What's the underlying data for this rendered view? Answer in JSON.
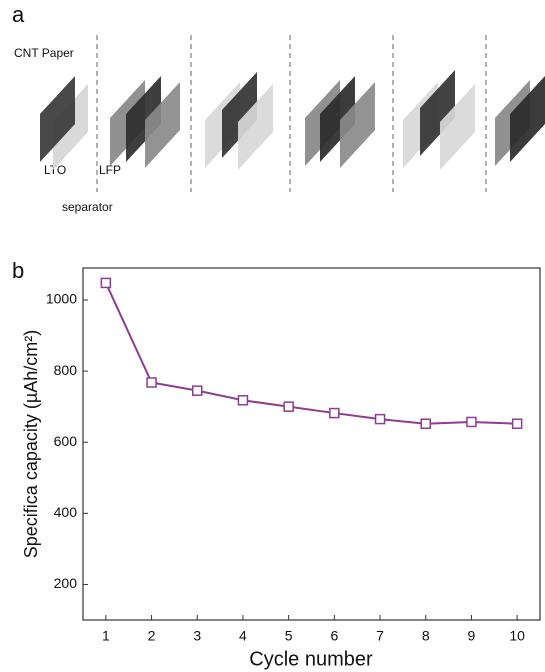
{
  "panel_a": {
    "label": "a",
    "cnt_paper": "CNT Paper",
    "lto": "LTO",
    "lfp": "LFP",
    "separator": "separator"
  },
  "chart_data": {
    "type": "line",
    "panel_label": "b",
    "x_label": "Cycle number",
    "y_label": "Specifica capacity (µAh/cm²)",
    "x": [
      1,
      2,
      3,
      4,
      5,
      6,
      7,
      8,
      9,
      10
    ],
    "series": [
      {
        "color": "#8e3d8e",
        "values": [
          1048,
          768,
          745,
          718,
          700,
          682,
          665,
          652,
          657,
          652
        ]
      }
    ],
    "xlim": [
      0.5,
      10.5
    ],
    "xticks": [
      1,
      2,
      3,
      4,
      5,
      6,
      7,
      8,
      9,
      10
    ],
    "ylim": [
      100,
      1090
    ],
    "yticks": [
      200,
      400,
      600,
      800,
      1000
    ]
  }
}
